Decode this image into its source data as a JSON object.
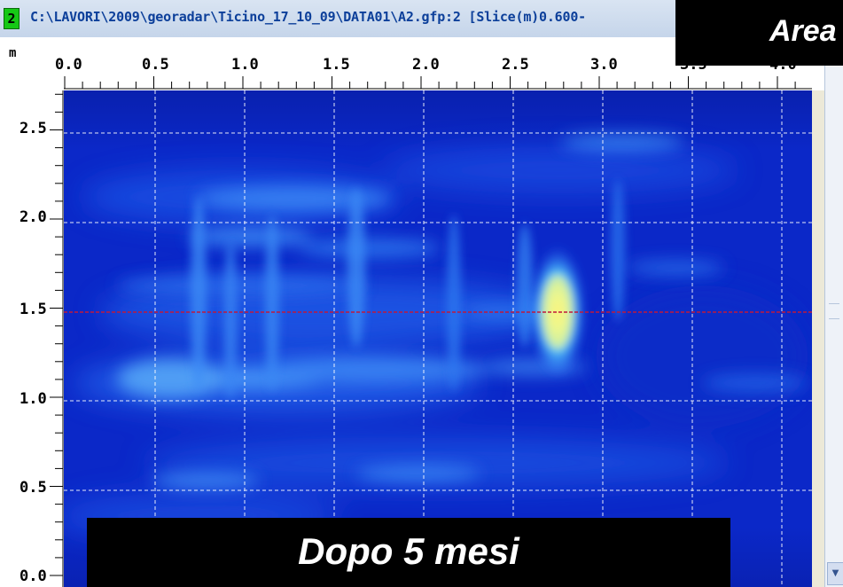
{
  "window": {
    "number": "2",
    "title": "C:\\LAVORI\\2009\\georadar\\Ticino_17_10_09\\DATA01\\A2.gfp:2 [Slice(m)0.600-"
  },
  "overlay_top_right": {
    "text": "Area"
  },
  "caption": {
    "text": "Dopo 5 mesi"
  },
  "axes": {
    "unit_label": "m",
    "x_ticks": [
      "0.0",
      "0.5",
      "1.0",
      "1.5",
      "2.0",
      "2.5",
      "3.0",
      "3.5",
      "4.0"
    ],
    "y_ticks": [
      "2.5",
      "2.0",
      "1.5",
      "1.0",
      "0.5",
      "0.0"
    ]
  },
  "colors": {
    "background_low": "#0a27c6",
    "anomaly_high": "#fff27a",
    "grid_line": "#ffffff",
    "guide_line": "#c0183c",
    "window_number_badge": "#16c816",
    "title_text": "#0c3f9a"
  },
  "icons": {
    "scroll_down": "chevron-down-icon"
  }
}
